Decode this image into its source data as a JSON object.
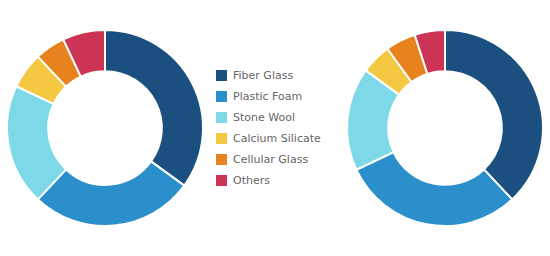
{
  "chart_data": [
    {
      "type": "doughnut",
      "categories": [
        "Fiber Glass",
        "Plastic Foam",
        "Stone Wool",
        "Calcium Silicate",
        "Cellular Glass",
        "Others"
      ],
      "values": [
        35,
        27,
        20,
        6,
        5,
        7
      ],
      "colors": [
        "#1b4f80",
        "#2b8fcc",
        "#7dd8e8",
        "#f5c842",
        "#e8821e",
        "#cc3355"
      ],
      "legend": "center"
    },
    {
      "type": "doughnut",
      "categories": [
        "Fiber Glass",
        "Plastic Foam",
        "Stone Wool",
        "Calcium Silicate",
        "Cellular Glass",
        "Others"
      ],
      "values": [
        38,
        30,
        17,
        5,
        5,
        5
      ],
      "colors": [
        "#1b4f80",
        "#2b8fcc",
        "#7dd8e8",
        "#f5c842",
        "#e8821e",
        "#cc3355"
      ]
    }
  ]
}
